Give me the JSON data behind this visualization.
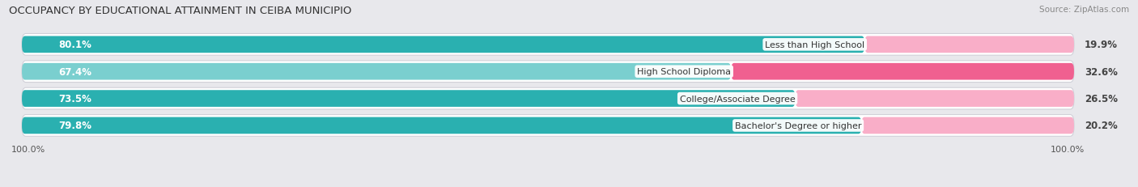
{
  "title": "OCCUPANCY BY EDUCATIONAL ATTAINMENT IN CEIBA MUNICIPIO",
  "source": "Source: ZipAtlas.com",
  "categories": [
    "Less than High School",
    "High School Diploma",
    "College/Associate Degree",
    "Bachelor's Degree or higher"
  ],
  "owner_values": [
    80.1,
    67.4,
    73.5,
    79.8
  ],
  "renter_values": [
    19.9,
    32.6,
    26.5,
    20.2
  ],
  "owner_colors": [
    "#2ab0b0",
    "#7acfcf",
    "#2ab0b0",
    "#2ab0b0"
  ],
  "renter_colors": [
    "#f9aec8",
    "#f06090",
    "#f9aec8",
    "#f9aec8"
  ],
  "bg_color": "#e8e8ec",
  "bar_bg_color": "#f0f0f4",
  "title_fontsize": 9.5,
  "label_fontsize": 8.5,
  "tick_fontsize": 8,
  "source_fontsize": 7.5,
  "bar_height": 0.62,
  "left_axis_label": "100.0%",
  "right_axis_label": "100.0%"
}
